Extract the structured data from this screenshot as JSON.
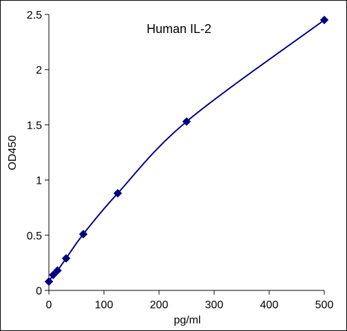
{
  "chart_data": {
    "type": "scatter",
    "title": "Human IL-2",
    "xlabel": "pg/ml",
    "ylabel": "OD450",
    "xlim": [
      0,
      500
    ],
    "ylim": [
      0,
      2.5
    ],
    "xticks": [
      0,
      100,
      200,
      300,
      400,
      500
    ],
    "yticks": [
      0,
      0.5,
      1,
      1.5,
      2,
      2.5
    ],
    "xtick_labels": [
      "0",
      "100",
      "200",
      "300",
      "400",
      "500"
    ],
    "ytick_labels": [
      "0",
      "0.5",
      "1",
      "1.5",
      "2",
      "2.5"
    ],
    "grid": false,
    "legend": "none",
    "series": [
      {
        "marker": "diamond",
        "line": "smooth",
        "color": "#000080",
        "x": [
          0,
          7.8,
          15.6,
          31.25,
          62.5,
          125,
          250,
          500
        ],
        "y": [
          0.08,
          0.14,
          0.18,
          0.29,
          0.51,
          0.88,
          1.53,
          2.45
        ]
      }
    ]
  }
}
